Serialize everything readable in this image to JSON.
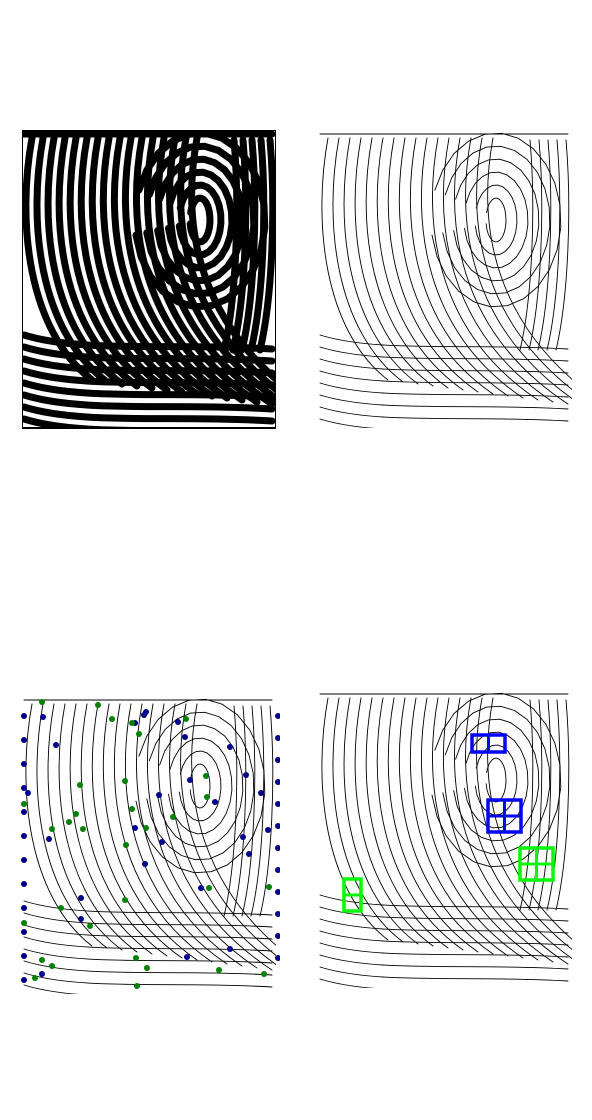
{
  "panels": [
    {
      "name": "binarized-fingerprint",
      "style": "binary"
    },
    {
      "name": "thinned-skeleton",
      "style": "skeleton"
    },
    {
      "name": "minutiae-overlay",
      "style": "minutiae"
    },
    {
      "name": "detected-regions",
      "style": "regions"
    }
  ],
  "colors": {
    "ridge": "#000000",
    "background": "#ffffff",
    "termination": "#00008b",
    "bifurcation": "#008000",
    "box_primary": "#0000ff",
    "box_secondary": "#00ff00"
  }
}
